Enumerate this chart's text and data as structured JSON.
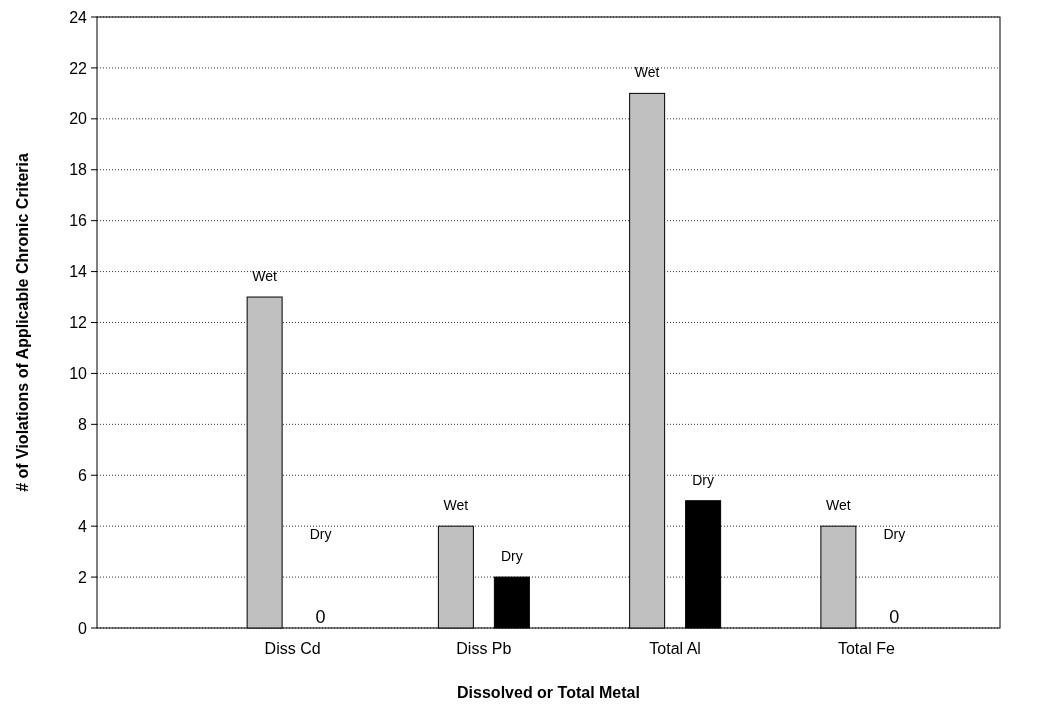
{
  "chart_data": {
    "type": "bar",
    "xlabel": "Dissolved or Total Metal",
    "ylabel": "# of Violations of Applicable Chronic Criteria",
    "categories": [
      "Diss Cd",
      "Diss Pb",
      "Total Al",
      "Total Fe"
    ],
    "series": [
      {
        "name": "Wet",
        "color": "#c0c0c0",
        "values": [
          13,
          4,
          21,
          4
        ]
      },
      {
        "name": "Dry",
        "color": "#000000",
        "values": [
          0,
          2,
          5,
          0
        ]
      }
    ],
    "annotations": [
      {
        "text": "0",
        "x": "Diss Cd",
        "y": 0
      },
      {
        "text": "0",
        "x": "Total Fe",
        "y": 0
      }
    ],
    "ylim": [
      0,
      24
    ],
    "yticks": [
      0,
      2,
      4,
      6,
      8,
      10,
      12,
      14,
      16,
      18,
      20,
      22,
      24
    ],
    "grid": "y",
    "line_style": "dotted"
  }
}
